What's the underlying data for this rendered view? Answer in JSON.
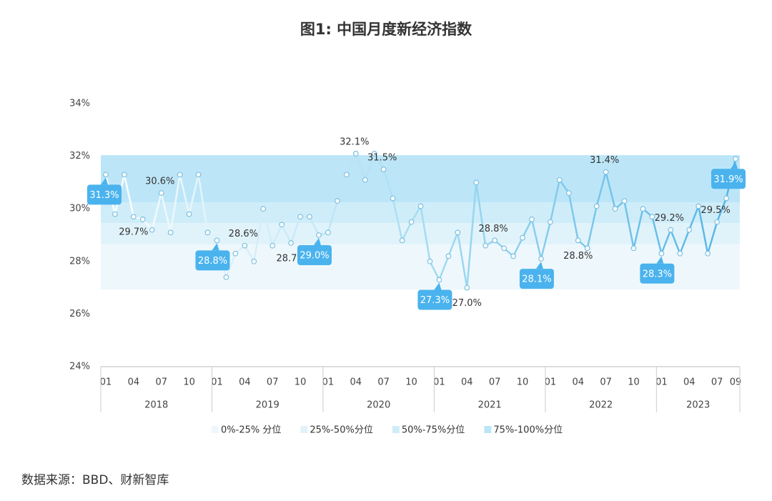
{
  "chart_data": {
    "type": "line",
    "title": "图1: 中国月度新经济指数",
    "source": "数据来源：BBD、财新智库",
    "categories": [
      "01",
      null,
      null,
      "04",
      null,
      null,
      "07",
      null,
      null,
      "10",
      null,
      null,
      "01",
      null,
      null,
      "04",
      null,
      null,
      "07",
      null,
      null,
      "10",
      null,
      null,
      "01",
      null,
      null,
      "04",
      null,
      null,
      "07",
      null,
      null,
      "10",
      null,
      null,
      "01",
      null,
      null,
      "04",
      null,
      null,
      "07",
      null,
      null,
      "10",
      null,
      null,
      "01",
      null,
      null,
      "04",
      null,
      null,
      "07",
      null,
      null,
      "10",
      null,
      null,
      "01",
      null,
      null,
      "04",
      null,
      null,
      "07",
      null,
      "09"
    ],
    "years": [
      "2018",
      "2019",
      "2020",
      "2021",
      "2022",
      "2023"
    ],
    "values": [
      31.3,
      29.8,
      31.3,
      29.7,
      29.6,
      29.2,
      30.6,
      29.1,
      31.3,
      29.8,
      31.3,
      29.1,
      28.8,
      27.4,
      28.3,
      28.6,
      28.0,
      30.0,
      28.6,
      29.4,
      28.7,
      29.7,
      29.7,
      29.0,
      29.1,
      30.3,
      31.3,
      32.1,
      31.1,
      32.1,
      31.5,
      30.4,
      28.8,
      29.5,
      30.1,
      28.0,
      27.3,
      28.2,
      29.1,
      27.0,
      31.0,
      28.6,
      28.8,
      28.5,
      28.2,
      28.9,
      29.6,
      28.1,
      29.5,
      31.1,
      30.6,
      28.8,
      28.5,
      30.1,
      31.4,
      30.0,
      30.3,
      28.5,
      30.0,
      29.7,
      28.3,
      29.2,
      28.3,
      29.2,
      30.1,
      28.3,
      29.5,
      30.4,
      31.9
    ],
    "value_labels": [
      "31.3%",
      null,
      null,
      "29.7%",
      null,
      null,
      "30.6%",
      null,
      null,
      null,
      null,
      null,
      "28.8%",
      null,
      null,
      "28.6%",
      null,
      null,
      null,
      null,
      "28.7%",
      null,
      null,
      "29.0%",
      null,
      null,
      null,
      "32.1%",
      null,
      null,
      "31.5%",
      null,
      null,
      null,
      null,
      null,
      "27.3%",
      null,
      null,
      "27.0%",
      null,
      null,
      "28.8%",
      null,
      null,
      null,
      null,
      "28.1%",
      null,
      null,
      null,
      "28.8%",
      null,
      null,
      "31.4%",
      null,
      null,
      null,
      null,
      null,
      "28.3%",
      "29.2%",
      null,
      null,
      null,
      null,
      "29.5%",
      null,
      "31.9%"
    ],
    "callout_points": [
      0,
      12,
      23,
      36,
      47,
      60,
      68
    ],
    "callout_color": "#4ab3ee",
    "line_colors": [
      "#ffffff",
      "#a6dcf2",
      "#56b4e6"
    ],
    "ylim": [
      24,
      34
    ],
    "yticks": [
      {
        "value": 24,
        "label": "24%"
      },
      {
        "value": 26,
        "label": "26%"
      },
      {
        "value": 28,
        "label": "28%"
      },
      {
        "value": 30,
        "label": "30%"
      },
      {
        "value": 32,
        "label": "32%"
      },
      {
        "value": 34,
        "label": "34%"
      }
    ],
    "bands": [
      {
        "name": "0%-25% 分位",
        "from": 26.93,
        "to": 28.65,
        "color": "#eef8fc"
      },
      {
        "name": "25%-50%分位",
        "from": 28.65,
        "to": 29.46,
        "color": "#e0f3fb"
      },
      {
        "name": "50%-75%分位",
        "from": 29.46,
        "to": 30.25,
        "color": "#cfedf9"
      },
      {
        "name": "75%-100%分位",
        "from": 30.25,
        "to": 32.04,
        "color": "#bce6f8"
      }
    ]
  }
}
